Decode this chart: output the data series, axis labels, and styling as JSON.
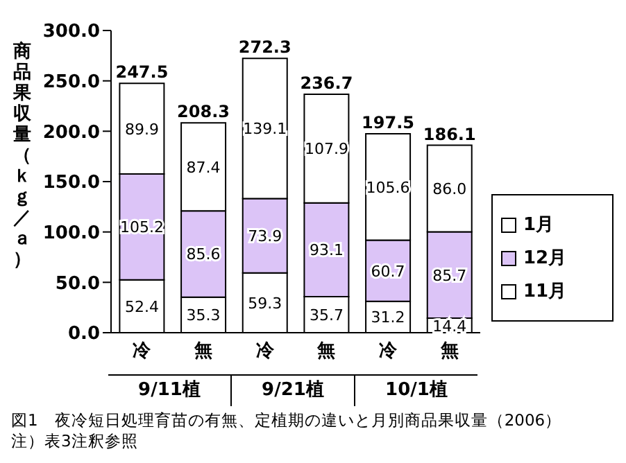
{
  "chart_data": {
    "type": "bar",
    "title": "図1　夜冷短日処理育苗の有無、定植期の違いと月別商品果収量（2006）",
    "ylabel": "商品果収量（ｋｇ／ａ）",
    "categories": [
      "冷",
      "無",
      "冷",
      "無",
      "冷",
      "無"
    ],
    "stacked": true,
    "legend": "right",
    "grid": false,
    "series": [
      {
        "name": "11月",
        "color": "#ffffff",
        "values": [
          52.4,
          35.3,
          59.3,
          35.7,
          31.2,
          14.4
        ],
        "value_labels": [
          "52.4",
          "35.3",
          "59.3",
          "35.7",
          "31.2",
          "14.4"
        ]
      },
      {
        "name": "12月",
        "color": "#dcc4f7",
        "values": [
          105.2,
          85.6,
          73.9,
          93.1,
          60.7,
          85.7
        ],
        "value_labels": [
          "105.2",
          "85.6",
          "73.9",
          "93.1",
          "60.7",
          "85.7"
        ]
      },
      {
        "name": "1月",
        "color": "#ffffff",
        "values": [
          89.9,
          87.4,
          139.1,
          107.9,
          105.6,
          86.0
        ],
        "value_labels": [
          "89.9",
          "87.4",
          "139.1",
          "107.9",
          "105.6",
          "86.0"
        ]
      }
    ],
    "totals": [
      "247.5",
      "208.3",
      "272.3",
      "236.7",
      "197.5",
      "186.1"
    ],
    "ylim": [
      0,
      300
    ],
    "yticks": [
      {
        "value": 0,
        "label": "0.0"
      },
      {
        "value": 50,
        "label": "50.0"
      },
      {
        "value": 100,
        "label": "100.0"
      },
      {
        "value": 150,
        "label": "150.0"
      },
      {
        "value": 200,
        "label": "200.0"
      },
      {
        "value": 250,
        "label": "250.0"
      },
      {
        "value": 300,
        "label": "300.0"
      }
    ],
    "annotations": [
      "9/11植",
      "9/21植",
      "10/1植",
      "注）表3注釈参照"
    ]
  }
}
